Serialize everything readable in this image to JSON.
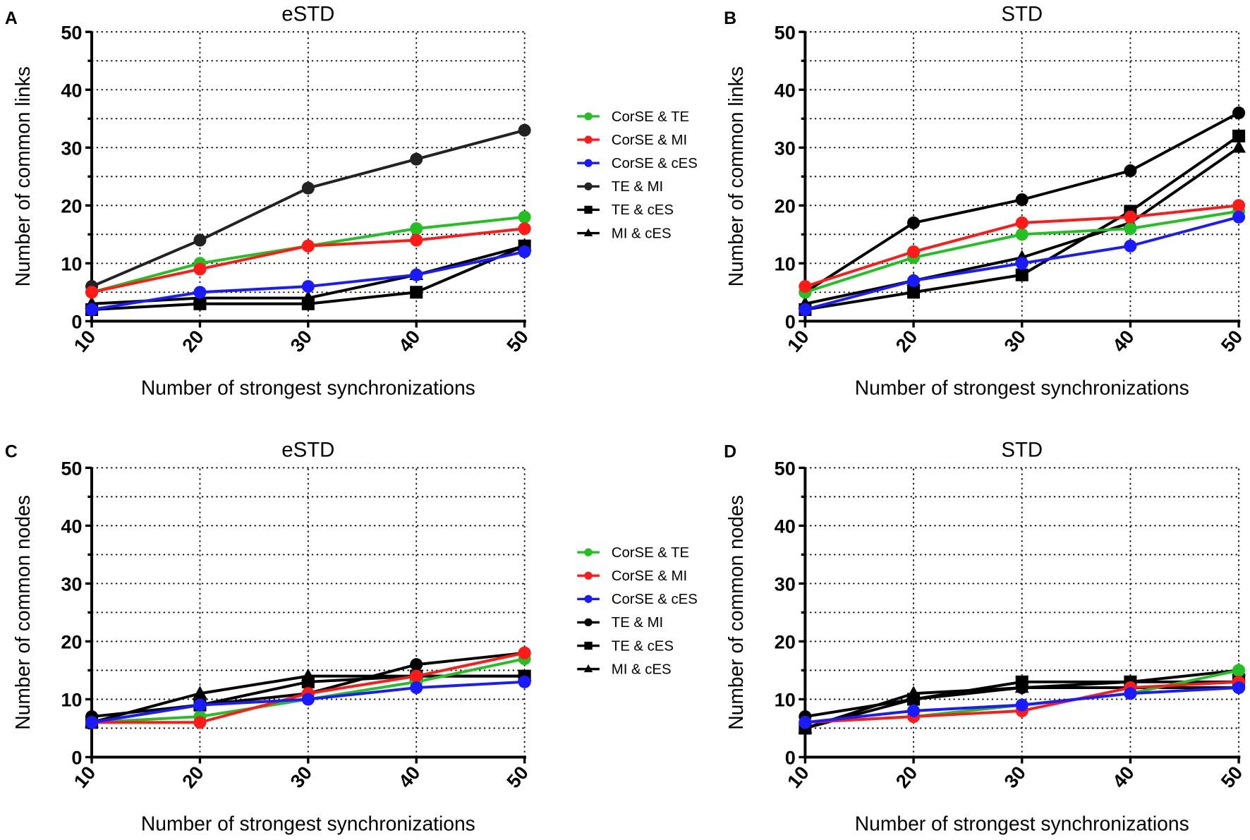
{
  "chart_data": [
    {
      "panel": "A",
      "type": "line",
      "title": "eSTD",
      "xlabel": "Number of strongest synchronizations",
      "ylabel": "Number of common links",
      "x": [
        10,
        20,
        30,
        40,
        50
      ],
      "xlim": [
        10,
        50
      ],
      "ylim": [
        0,
        50
      ],
      "xticks": [
        "10",
        "20",
        "30",
        "40",
        "50"
      ],
      "yticks": [
        "0",
        "10",
        "20",
        "30",
        "40",
        "50"
      ],
      "grid": true,
      "legend": "right",
      "series": [
        {
          "name": "CorSE & TE",
          "color": "#22c022",
          "marker": "circle",
          "values": [
            5,
            10,
            13,
            16,
            18
          ]
        },
        {
          "name": "CorSE & MI",
          "color": "#ff1a1a",
          "marker": "circle",
          "values": [
            5,
            9,
            13,
            14,
            16
          ]
        },
        {
          "name": "CorSE & cES",
          "color": "#1a1aff",
          "marker": "circle",
          "values": [
            2,
            5,
            6,
            8,
            12
          ]
        },
        {
          "name": "TE & MI",
          "color": "#222222",
          "marker": "circle",
          "values": [
            6,
            14,
            23,
            28,
            33
          ]
        },
        {
          "name": "TE & cES",
          "color": "#000000",
          "marker": "square",
          "values": [
            2,
            3,
            3,
            5,
            13
          ]
        },
        {
          "name": "MI & cES",
          "color": "#000000",
          "marker": "triangle",
          "values": [
            3,
            4,
            4,
            8,
            13
          ]
        }
      ]
    },
    {
      "panel": "B",
      "type": "line",
      "title": "STD",
      "xlabel": "Number of strongest synchronizations",
      "ylabel": "Number of common links",
      "x": [
        10,
        20,
        30,
        40,
        50
      ],
      "xlim": [
        10,
        50
      ],
      "ylim": [
        0,
        50
      ],
      "xticks": [
        "10",
        "20",
        "30",
        "40",
        "50"
      ],
      "yticks": [
        "0",
        "10",
        "20",
        "30",
        "40",
        "50"
      ],
      "grid": true,
      "series": [
        {
          "name": "CorSE & TE",
          "color": "#22c022",
          "marker": "circle",
          "values": [
            5,
            11,
            15,
            16,
            19
          ]
        },
        {
          "name": "CorSE & MI",
          "color": "#ff1a1a",
          "marker": "circle",
          "values": [
            6,
            12,
            17,
            18,
            20
          ]
        },
        {
          "name": "CorSE & cES",
          "color": "#1a1aff",
          "marker": "circle",
          "values": [
            2,
            7,
            10,
            13,
            18
          ]
        },
        {
          "name": "TE & MI",
          "color": "#000000",
          "marker": "circle",
          "values": [
            5,
            17,
            21,
            26,
            36
          ]
        },
        {
          "name": "TE & cES",
          "color": "#000000",
          "marker": "square",
          "values": [
            2,
            5,
            8,
            19,
            32
          ]
        },
        {
          "name": "MI & cES",
          "color": "#000000",
          "marker": "triangle",
          "values": [
            3,
            7,
            11,
            17,
            30
          ]
        }
      ]
    },
    {
      "panel": "C",
      "type": "line",
      "title": "eSTD",
      "xlabel": "Number of strongest synchronizations",
      "ylabel": "Number of common nodes",
      "x": [
        10,
        20,
        30,
        40,
        50
      ],
      "xlim": [
        10,
        50
      ],
      "ylim": [
        0,
        50
      ],
      "xticks": [
        "10",
        "20",
        "30",
        "40",
        "50"
      ],
      "yticks": [
        "0",
        "10",
        "20",
        "30",
        "40",
        "50"
      ],
      "grid": true,
      "legend": "right",
      "series": [
        {
          "name": "CorSE & TE",
          "color": "#22c022",
          "marker": "circle",
          "values": [
            6,
            7,
            10,
            13,
            17
          ]
        },
        {
          "name": "CorSE & MI",
          "color": "#ff1a1a",
          "marker": "circle",
          "values": [
            6,
            6,
            11,
            14,
            18
          ]
        },
        {
          "name": "CorSE & cES",
          "color": "#1a1aff",
          "marker": "circle",
          "values": [
            6,
            9,
            10,
            12,
            13
          ]
        },
        {
          "name": "TE & MI",
          "color": "#000000",
          "marker": "circle",
          "values": [
            7,
            9,
            11,
            16,
            18
          ]
        },
        {
          "name": "TE & cES",
          "color": "#000000",
          "marker": "square",
          "values": [
            6,
            9,
            13,
            14,
            14
          ]
        },
        {
          "name": "MI & cES",
          "color": "#000000",
          "marker": "triangle",
          "values": [
            6,
            11,
            14,
            14,
            14
          ]
        }
      ]
    },
    {
      "panel": "D",
      "type": "line",
      "title": "STD",
      "xlabel": "Number of strongest synchronizations",
      "ylabel": "Number of common nodes",
      "x": [
        10,
        20,
        30,
        40,
        50
      ],
      "xlim": [
        10,
        50
      ],
      "ylim": [
        0,
        50
      ],
      "xticks": [
        "10",
        "20",
        "30",
        "40",
        "50"
      ],
      "yticks": [
        "0",
        "10",
        "20",
        "30",
        "40",
        "50"
      ],
      "grid": true,
      "series": [
        {
          "name": "CorSE & TE",
          "color": "#22c022",
          "marker": "circle",
          "values": [
            6,
            7,
            9,
            11,
            15
          ]
        },
        {
          "name": "CorSE & MI",
          "color": "#ff1a1a",
          "marker": "circle",
          "values": [
            6,
            7,
            8,
            12,
            13
          ]
        },
        {
          "name": "CorSE & cES",
          "color": "#1a1aff",
          "marker": "circle",
          "values": [
            6,
            8,
            9,
            11,
            12
          ]
        },
        {
          "name": "TE & MI",
          "color": "#000000",
          "marker": "circle",
          "values": [
            7,
            10,
            12,
            12,
            12
          ]
        },
        {
          "name": "TE & cES",
          "color": "#000000",
          "marker": "square",
          "values": [
            5,
            10,
            13,
            13,
            13
          ]
        },
        {
          "name": "MI & cES",
          "color": "#000000",
          "marker": "triangle",
          "values": [
            5,
            11,
            12,
            13,
            15
          ]
        }
      ]
    }
  ]
}
